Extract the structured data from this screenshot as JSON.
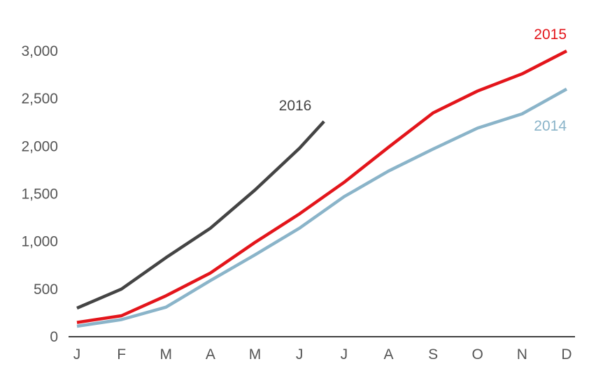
{
  "chart_data": {
    "type": "line",
    "title": "",
    "xlabel": "",
    "ylabel": "",
    "categories": [
      "J",
      "F",
      "M",
      "A",
      "M",
      "J",
      "J",
      "A",
      "S",
      "O",
      "N",
      "D"
    ],
    "ylim": [
      0,
      3000
    ],
    "yticks": [
      "0",
      "500",
      "1,000",
      "1,500",
      "2,000",
      "2,500",
      "3,000"
    ],
    "ytick_values": [
      0,
      500,
      1000,
      1500,
      2000,
      2500,
      3000
    ],
    "grid": false,
    "legend": "inline labels",
    "series": [
      {
        "name": "2014",
        "color": "#8ab4c9",
        "x": [
          0,
          1,
          2,
          3,
          4,
          5,
          6,
          7,
          8,
          9,
          10,
          11
        ],
        "values": [
          110,
          180,
          310,
          590,
          860,
          1140,
          1470,
          1740,
          1970,
          2190,
          2340,
          2600
        ]
      },
      {
        "name": "2015",
        "color": "#e3151b",
        "x": [
          0,
          1,
          2,
          3,
          4,
          5,
          6,
          7,
          8,
          9,
          10,
          11
        ],
        "values": [
          150,
          220,
          430,
          670,
          990,
          1290,
          1620,
          1990,
          2350,
          2580,
          2760,
          3000
        ]
      },
      {
        "name": "2016",
        "color": "#444444",
        "x": [
          0,
          1,
          2,
          3,
          4,
          5,
          5.55
        ],
        "values": [
          300,
          500,
          830,
          1140,
          1540,
          1980,
          2260
        ]
      }
    ]
  }
}
